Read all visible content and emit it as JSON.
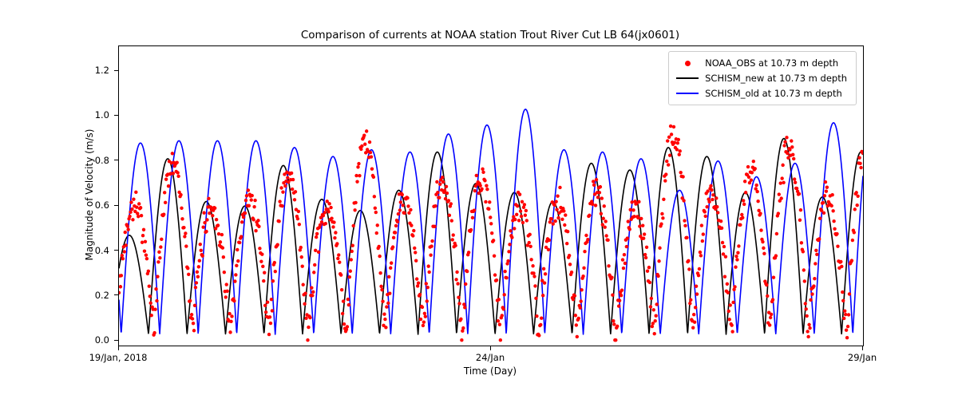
{
  "figure": {
    "title": "Comparison of currents at NOAA station Trout River Cut LB 64(jx0601)",
    "xlabel": "Time (Day)",
    "ylabel": "Magnitude of Velocity (m/s)"
  },
  "chart_data": {
    "type": "line+scatter",
    "title": "Comparison of currents at NOAA station Trout River Cut LB 64(jx0601)",
    "xlabel": "Time (Day)",
    "ylabel": "Magnitude of Velocity (m/s)",
    "xlim_days": [
      0,
      10
    ],
    "ylim": [
      -0.02,
      1.31
    ],
    "grid": false,
    "legend_position": "upper right",
    "xticks": {
      "values": [
        0,
        5,
        10
      ],
      "labels": [
        "19/Jan, 2018",
        "24/Jan",
        "29/Jan"
      ]
    },
    "yticks": {
      "values": [
        0.0,
        0.2,
        0.4,
        0.6,
        0.8,
        1.0,
        1.2
      ],
      "labels": [
        "0.0",
        "0.2",
        "0.4",
        "0.6",
        "0.8",
        "1.0",
        "1.2"
      ]
    },
    "tide_period_days": 0.5175,
    "series": [
      {
        "name": "NOAA_OBS at 10.73 m depth",
        "type": "scatter",
        "color": "#ff0000",
        "marker": "dot",
        "marker_radius": 2.2,
        "base": 0.03,
        "phase_days": -0.05,
        "sample_interval_days": 0.0104,
        "noise_amp": 0.055,
        "noise_seed": 42,
        "peaks_per_tidal_cycle": [
          0.62,
          0.8,
          0.6,
          0.63,
          0.74,
          0.58,
          0.88,
          0.64,
          0.7,
          0.72,
          0.6,
          0.62,
          0.66,
          0.58,
          0.92,
          0.66,
          0.76,
          0.86,
          0.64,
          0.9
        ]
      },
      {
        "name": "SCHISM_new at 10.73 m depth",
        "type": "line",
        "color": "#000000",
        "marker": "line",
        "line_width": 1.6,
        "base": 0.03,
        "phase_days": -0.12,
        "peaks_per_tidal_cycle": [
          0.47,
          0.81,
          0.62,
          0.6,
          0.78,
          0.63,
          0.58,
          0.67,
          0.84,
          0.7,
          0.66,
          0.62,
          0.79,
          0.76,
          0.86,
          0.82,
          0.66,
          0.9,
          0.64,
          0.84
        ]
      },
      {
        "name": "SCHISM_old at 10.73 m depth",
        "type": "line",
        "color": "#0000ff",
        "marker": "line",
        "line_width": 1.6,
        "base": 0.03,
        "phase_days": 0.03,
        "peaks_per_tidal_cycle": [
          0.88,
          0.89,
          0.89,
          0.89,
          0.86,
          0.82,
          0.85,
          0.84,
          0.92,
          0.96,
          1.03,
          0.85,
          0.84,
          0.81,
          0.67,
          0.8,
          0.73,
          0.79,
          0.97,
          0.98
        ]
      }
    ]
  }
}
